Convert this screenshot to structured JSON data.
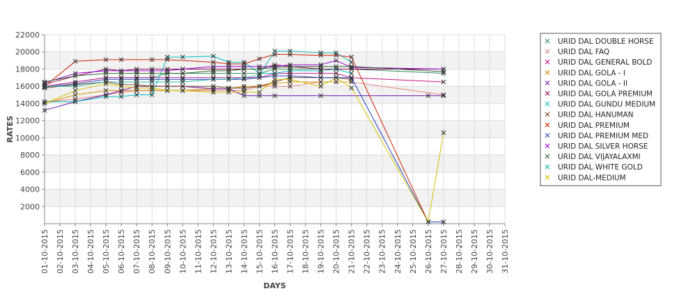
{
  "chart_data": {
    "type": "line",
    "title": "",
    "xlabel": "DAYS",
    "ylabel": "RATES",
    "ylim": [
      0,
      22000
    ],
    "yticks": [
      2000,
      4000,
      6000,
      8000,
      10000,
      12000,
      14000,
      16000,
      18000,
      20000,
      22000
    ],
    "xlim": [
      1,
      31
    ],
    "x_ticks": [
      "01-10-2015",
      "02-10-2015",
      "03-10-2015",
      "04-10-2015",
      "05-10-2015",
      "06-10-2015",
      "07-10-2015",
      "08-10-2015",
      "09-10-2015",
      "10-10-2015",
      "11-10-2015",
      "12-10-2015",
      "13-10-2015",
      "14-10-2015",
      "15-10-2015",
      "16-10-2015",
      "17-10-2015",
      "18-10-2015",
      "19-10-2015",
      "20-10-2015",
      "21-10-2015",
      "22-10-2015",
      "23-10-2015",
      "24-10-2015",
      "25-10-2015",
      "26-10-2015",
      "27-10-2015",
      "28-10-2015",
      "29-10-2015",
      "30-10-2015",
      "31-10-2015"
    ],
    "grid": true,
    "legend_position": "right",
    "series": [
      {
        "name": "URID DAL DOUBLE HORSE",
        "color": "#2e8b57",
        "points": [
          [
            1,
            16000
          ],
          [
            3,
            16500
          ],
          [
            5,
            17000
          ],
          [
            6,
            17000
          ],
          [
            7,
            17000
          ],
          [
            8,
            17000
          ],
          [
            9,
            17500
          ],
          [
            10,
            17500
          ],
          [
            12,
            17500
          ],
          [
            13,
            17500
          ],
          [
            14,
            17500
          ],
          [
            15,
            17500
          ],
          [
            16,
            18000
          ],
          [
            17,
            18000
          ],
          [
            19,
            18000
          ],
          [
            20,
            18000
          ],
          [
            21,
            18000
          ],
          [
            27,
            17500
          ]
        ]
      },
      {
        "name": "URID DAL FAQ",
        "color": "#e58080",
        "points": [
          [
            1,
            14200
          ],
          [
            3,
            14500
          ],
          [
            5,
            15000
          ],
          [
            6,
            15300
          ],
          [
            7,
            15500
          ],
          [
            8,
            15500
          ],
          [
            9,
            15500
          ],
          [
            10,
            15500
          ],
          [
            12,
            15500
          ],
          [
            13,
            15500
          ],
          [
            14,
            15500
          ],
          [
            15,
            16000
          ],
          [
            16,
            16000
          ],
          [
            17,
            16000
          ],
          [
            19,
            16500
          ],
          [
            20,
            16500
          ],
          [
            21,
            16500
          ],
          [
            27,
            15000
          ]
        ]
      },
      {
        "name": "URID DAL GENERAL BOLD",
        "color": "#c71585",
        "points": [
          [
            1,
            16000
          ],
          [
            3,
            16500
          ],
          [
            5,
            17000
          ],
          [
            6,
            17000
          ],
          [
            7,
            17000
          ],
          [
            8,
            17000
          ],
          [
            9,
            17000
          ],
          [
            10,
            17000
          ],
          [
            12,
            17000
          ],
          [
            13,
            17000
          ],
          [
            14,
            17000
          ],
          [
            15,
            17000
          ],
          [
            16,
            17500
          ],
          [
            17,
            17500
          ],
          [
            19,
            17500
          ],
          [
            20,
            17500
          ],
          [
            21,
            17000
          ],
          [
            27,
            16500
          ]
        ]
      },
      {
        "name": "URID DAL GOLA - I",
        "color": "#d98b00",
        "points": [
          [
            1,
            14000
          ],
          [
            3,
            15000
          ],
          [
            5,
            15500
          ],
          [
            6,
            15500
          ],
          [
            7,
            15500
          ],
          [
            8,
            15500
          ],
          [
            9,
            15500
          ],
          [
            10,
            15500
          ],
          [
            12,
            15700
          ],
          [
            13,
            15700
          ],
          [
            14,
            16000
          ],
          [
            15,
            16000
          ],
          [
            16,
            16300
          ],
          [
            17,
            16500
          ],
          [
            19,
            16500
          ],
          [
            20,
            16500
          ],
          [
            21,
            16500
          ]
        ]
      },
      {
        "name": "URID DAL GOLA - II",
        "color": "#6a0dad",
        "points": [
          [
            1,
            13200
          ],
          [
            3,
            14200
          ],
          [
            5,
            15000
          ],
          [
            6,
            15500
          ],
          [
            7,
            16000
          ],
          [
            8,
            16000
          ],
          [
            9,
            16000
          ],
          [
            10,
            16000
          ],
          [
            12,
            15700
          ],
          [
            13,
            15700
          ],
          [
            14,
            14900
          ],
          [
            15,
            14900
          ],
          [
            16,
            14900
          ],
          [
            19,
            14900
          ],
          [
            26,
            14900
          ],
          [
            27,
            14900
          ]
        ]
      },
      {
        "name": "URID DAL GOLA PREMIUM",
        "color": "#8b0045",
        "points": [
          [
            1,
            16200
          ],
          [
            3,
            17200
          ],
          [
            5,
            18000
          ],
          [
            6,
            17800
          ],
          [
            7,
            18000
          ],
          [
            8,
            18000
          ],
          [
            9,
            18000
          ],
          [
            10,
            18000
          ],
          [
            12,
            18000
          ],
          [
            13,
            18000
          ],
          [
            14,
            18000
          ],
          [
            15,
            18000
          ],
          [
            16,
            18500
          ],
          [
            17,
            18300
          ],
          [
            19,
            18000
          ],
          [
            20,
            18000
          ],
          [
            21,
            18000
          ],
          [
            27,
            18000
          ]
        ]
      },
      {
        "name": "URID DAL GUNDU MEDIUM",
        "color": "#00c0c0",
        "points": [
          [
            1,
            14200
          ],
          [
            3,
            14200
          ],
          [
            5,
            14800
          ],
          [
            6,
            14800
          ],
          [
            7,
            15000
          ],
          [
            8,
            15000
          ],
          [
            9,
            19400
          ],
          [
            10,
            19400
          ],
          [
            12,
            19500
          ],
          [
            13,
            18800
          ],
          [
            14,
            18800
          ],
          [
            15,
            17500
          ],
          [
            16,
            17500
          ],
          [
            17,
            17800
          ],
          [
            19,
            17800
          ],
          [
            20,
            18000
          ],
          [
            21,
            17500
          ]
        ]
      },
      {
        "name": "URID DAL HANUMAN",
        "color": "#7a4a20",
        "points": [
          [
            1,
            15800
          ],
          [
            3,
            16200
          ],
          [
            5,
            16500
          ],
          [
            6,
            16200
          ],
          [
            7,
            16200
          ],
          [
            8,
            16000
          ],
          [
            9,
            16000
          ],
          [
            10,
            16000
          ],
          [
            12,
            16000
          ],
          [
            13,
            15800
          ],
          [
            14,
            15800
          ],
          [
            15,
            16000
          ],
          [
            16,
            16500
          ],
          [
            17,
            17000
          ],
          [
            19,
            17000
          ],
          [
            20,
            17000
          ],
          [
            21,
            16800
          ]
        ]
      },
      {
        "name": "URID DAL PREMIUM",
        "color": "#cc2200",
        "points": [
          [
            1,
            16000
          ],
          [
            3,
            18900
          ],
          [
            5,
            19100
          ],
          [
            6,
            19100
          ],
          [
            8,
            19100
          ],
          [
            9,
            19100
          ],
          [
            12,
            18800
          ],
          [
            13,
            18600
          ],
          [
            14,
            18600
          ],
          [
            15,
            19200
          ],
          [
            16,
            19700
          ],
          [
            17,
            19700
          ],
          [
            19,
            19600
          ],
          [
            20,
            19600
          ],
          [
            21,
            19400
          ],
          [
            26,
            200
          ],
          [
            27,
            200
          ]
        ]
      },
      {
        "name": "URID DAL PREMIUM MED",
        "color": "#1f3fbf",
        "points": [
          [
            1,
            15900
          ],
          [
            3,
            16300
          ],
          [
            5,
            16800
          ],
          [
            6,
            16800
          ],
          [
            7,
            16800
          ],
          [
            8,
            16800
          ],
          [
            9,
            16800
          ],
          [
            10,
            16800
          ],
          [
            12,
            16800
          ],
          [
            13,
            16800
          ],
          [
            14,
            16800
          ],
          [
            15,
            17000
          ],
          [
            16,
            17200
          ],
          [
            17,
            17200
          ],
          [
            19,
            17000
          ],
          [
            20,
            17000
          ],
          [
            21,
            17000
          ],
          [
            26,
            200
          ],
          [
            27,
            200
          ]
        ]
      },
      {
        "name": "URID DAL SILVER HORSE",
        "color": "#9400d3",
        "points": [
          [
            1,
            16400
          ],
          [
            3,
            17500
          ],
          [
            5,
            17800
          ],
          [
            6,
            17800
          ],
          [
            7,
            17800
          ],
          [
            8,
            17800
          ],
          [
            9,
            17800
          ],
          [
            10,
            18000
          ],
          [
            12,
            18300
          ],
          [
            13,
            18300
          ],
          [
            14,
            18300
          ],
          [
            15,
            18300
          ],
          [
            16,
            18300
          ],
          [
            17,
            18500
          ],
          [
            19,
            18500
          ],
          [
            20,
            19000
          ],
          [
            21,
            18200
          ],
          [
            27,
            18000
          ]
        ]
      },
      {
        "name": "URID DAL VIJAYALAXMI",
        "color": "#2f5f2f",
        "points": [
          [
            1,
            16500
          ],
          [
            3,
            17200
          ],
          [
            5,
            17500
          ],
          [
            6,
            17500
          ],
          [
            7,
            17500
          ],
          [
            8,
            17500
          ],
          [
            9,
            17500
          ],
          [
            10,
            17500
          ],
          [
            12,
            17800
          ],
          [
            13,
            17800
          ],
          [
            14,
            18000
          ],
          [
            15,
            18000
          ],
          [
            16,
            18200
          ],
          [
            17,
            18300
          ],
          [
            19,
            18300
          ],
          [
            20,
            18300
          ],
          [
            21,
            18300
          ],
          [
            27,
            17700
          ]
        ]
      },
      {
        "name": "URID DAL WHITE GOLD",
        "color": "#20b2aa",
        "points": [
          [
            1,
            16000
          ],
          [
            3,
            16000
          ],
          [
            5,
            16500
          ],
          [
            6,
            16500
          ],
          [
            7,
            16500
          ],
          [
            8,
            16500
          ],
          [
            9,
            16500
          ],
          [
            10,
            16500
          ],
          [
            12,
            16800
          ],
          [
            13,
            16800
          ],
          [
            14,
            17000
          ],
          [
            15,
            17300
          ],
          [
            16,
            20100
          ],
          [
            17,
            20100
          ],
          [
            19,
            19900
          ],
          [
            20,
            19900
          ],
          [
            21,
            18800
          ]
        ]
      },
      {
        "name": "URID DAL-MEDIUM",
        "color": "#d4c000",
        "points": [
          [
            1,
            14000
          ],
          [
            3,
            15500
          ],
          [
            5,
            16300
          ],
          [
            6,
            16000
          ],
          [
            7,
            15800
          ],
          [
            8,
            15800
          ],
          [
            9,
            15500
          ],
          [
            10,
            15500
          ],
          [
            12,
            15300
          ],
          [
            13,
            15300
          ],
          [
            14,
            15300
          ],
          [
            15,
            15300
          ],
          [
            16,
            16800
          ],
          [
            17,
            16800
          ],
          [
            19,
            16000
          ],
          [
            20,
            17000
          ],
          [
            21,
            15800
          ],
          [
            26,
            200
          ],
          [
            27,
            10600
          ]
        ]
      }
    ]
  }
}
